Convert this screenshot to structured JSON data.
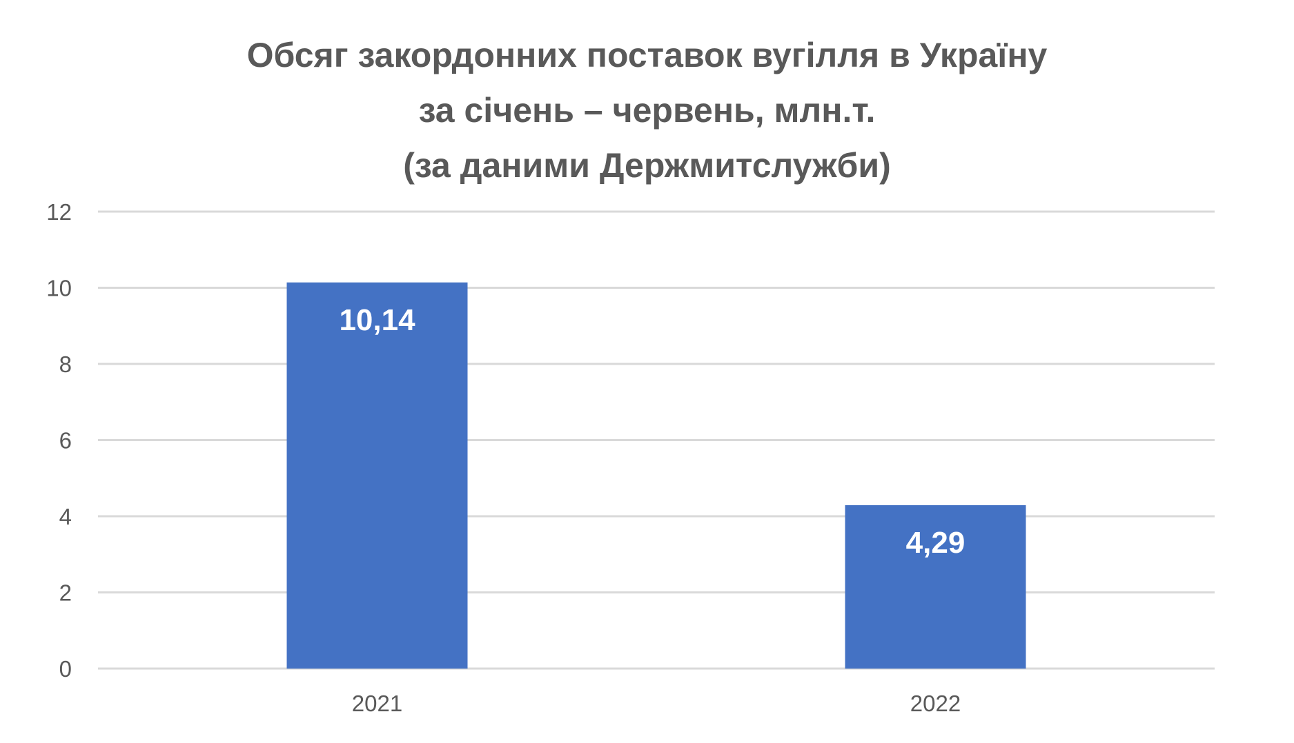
{
  "chart_data": {
    "type": "bar",
    "title_lines": [
      "Обсяг закордонних поставок вугілля в Україну",
      "за січень – червень, млн.т.",
      "(за даними Держмитслужби)"
    ],
    "categories": [
      "2021",
      "2022"
    ],
    "values": [
      10.14,
      4.29
    ],
    "data_labels": [
      "10,14",
      "4,29"
    ],
    "xlabel": "",
    "ylabel": "",
    "ylim": [
      0,
      12
    ],
    "yticks": [
      0,
      2,
      4,
      6,
      8,
      10,
      12
    ],
    "grid": true,
    "legend": "none",
    "bar_color": "#4472C4",
    "grid_color": "#D9D9D9"
  }
}
